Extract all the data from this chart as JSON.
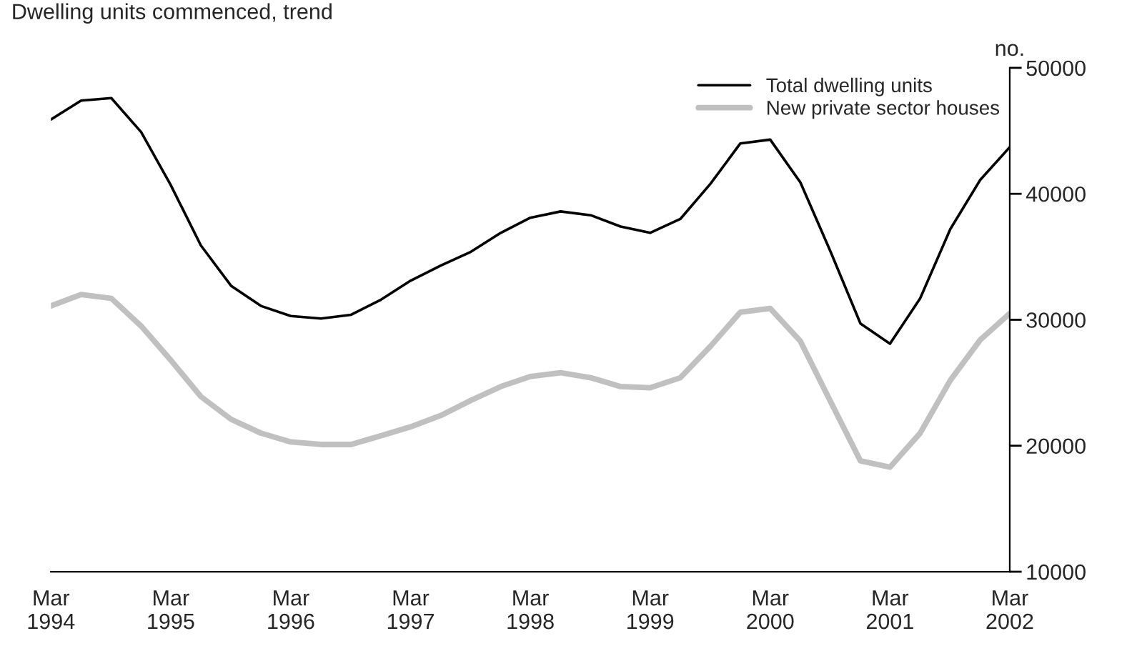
{
  "chart_data": {
    "type": "line",
    "title": "Dwelling units commenced, trend",
    "ylabel": "no.",
    "x": [
      "1994-03",
      "1994-06",
      "1994-09",
      "1994-12",
      "1995-03",
      "1995-06",
      "1995-09",
      "1995-12",
      "1996-03",
      "1996-06",
      "1996-09",
      "1996-12",
      "1997-03",
      "1997-06",
      "1997-09",
      "1997-12",
      "1998-03",
      "1998-06",
      "1998-09",
      "1998-12",
      "1999-03",
      "1999-06",
      "1999-09",
      "1999-12",
      "2000-03",
      "2000-06",
      "2000-09",
      "2000-12",
      "2001-03",
      "2001-06",
      "2001-09",
      "2001-12",
      "2002-03"
    ],
    "series": [
      {
        "name": "Total dwelling units",
        "color": "#000000",
        "values": [
          45900,
          47400,
          47600,
          44900,
          40700,
          35900,
          32700,
          31100,
          30300,
          30100,
          30400,
          31600,
          33100,
          34300,
          35400,
          36900,
          38100,
          38600,
          38300,
          37400,
          36900,
          38000,
          40800,
          44000,
          44300,
          40900,
          35400,
          29700,
          28100,
          31700,
          37200,
          41100,
          43700
        ]
      },
      {
        "name": "New private sector houses",
        "color": "#c0c0c0",
        "values": [
          31100,
          32000,
          31700,
          29500,
          26800,
          23900,
          22100,
          21000,
          20300,
          20100,
          20100,
          20800,
          21500,
          22400,
          23600,
          24700,
          25500,
          25800,
          25400,
          24700,
          24600,
          25400,
          27900,
          30600,
          30900,
          28300,
          23500,
          18800,
          18300,
          21000,
          25200,
          28400,
          30500
        ]
      }
    ],
    "xlim": [
      "1994-03",
      "2002-03"
    ],
    "xticks": [
      {
        "value": "1994-03",
        "label": "Mar\n1994"
      },
      {
        "value": "1995-03",
        "label": "Mar\n1995"
      },
      {
        "value": "1996-03",
        "label": "Mar\n1996"
      },
      {
        "value": "1997-03",
        "label": "Mar\n1997"
      },
      {
        "value": "1998-03",
        "label": "Mar\n1998"
      },
      {
        "value": "1999-03",
        "label": "Mar\n1999"
      },
      {
        "value": "2000-03",
        "label": "Mar\n2000"
      },
      {
        "value": "2001-03",
        "label": "Mar\n2001"
      },
      {
        "value": "2002-03",
        "label": "Mar\n2002"
      }
    ],
    "ylim": [
      10000,
      50000
    ],
    "yticks": [
      10000,
      20000,
      30000,
      40000,
      50000
    ],
    "legend": "top right",
    "grid": false,
    "marker": "none",
    "line_style": "solid"
  }
}
